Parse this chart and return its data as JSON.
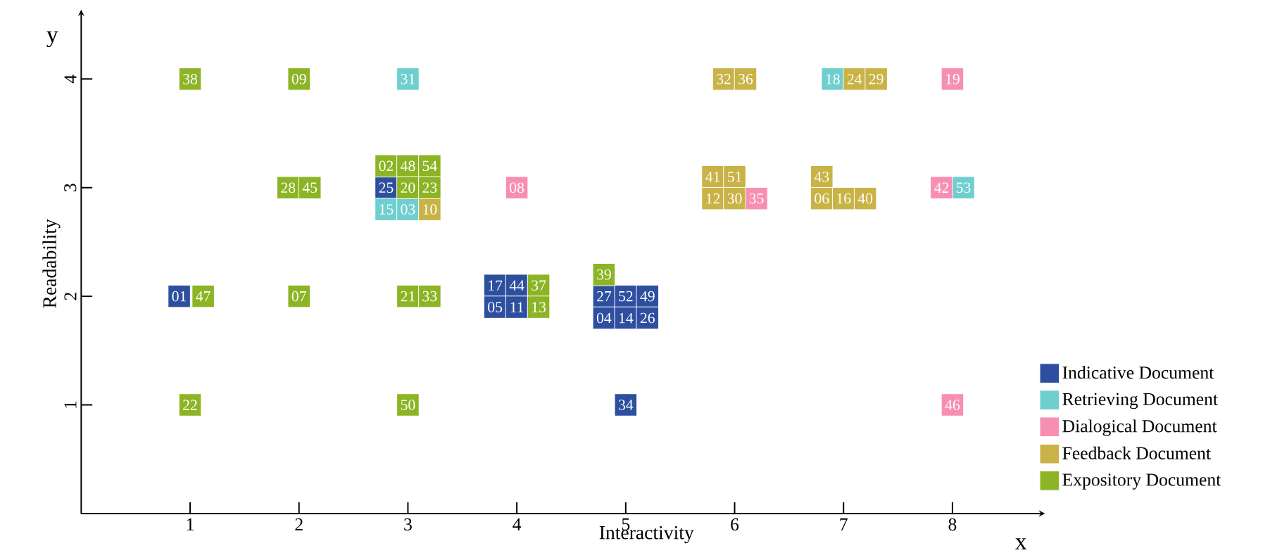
{
  "chart_data": {
    "type": "scatter",
    "xlabel": "Interactivity",
    "ylabel": "Readability",
    "annotations": [
      "x",
      "y",
      {
        "text": "01",
        "x": 0.9,
        "y": 2.0
      },
      {
        "text": "25",
        "x": 2.8,
        "y": 3.0
      },
      {
        "text": "17",
        "x": 3.8,
        "y": 2.1
      },
      {
        "text": "44",
        "x": 4.0,
        "y": 2.1
      },
      {
        "text": "05",
        "x": 3.8,
        "y": 1.9
      },
      {
        "text": "11",
        "x": 4.0,
        "y": 1.9
      },
      {
        "text": "27",
        "x": 4.8,
        "y": 2.0
      },
      {
        "text": "52",
        "x": 5.0,
        "y": 2.0
      },
      {
        "text": "49",
        "x": 5.2,
        "y": 2.0
      },
      {
        "text": "04",
        "x": 4.8,
        "y": 1.8
      },
      {
        "text": "14",
        "x": 5.0,
        "y": 1.8
      },
      {
        "text": "26",
        "x": 5.2,
        "y": 1.8
      },
      {
        "text": "34",
        "x": 5.0,
        "y": 1.0
      },
      {
        "text": "31",
        "x": 3.0,
        "y": 4.0
      },
      {
        "text": "15",
        "x": 2.8,
        "y": 2.8
      },
      {
        "text": "03",
        "x": 3.0,
        "y": 2.8
      },
      {
        "text": "18",
        "x": 6.9,
        "y": 4.0
      },
      {
        "text": "53",
        "x": 8.1,
        "y": 3.0
      },
      {
        "text": "08",
        "x": 4.0,
        "y": 3.0
      },
      {
        "text": "35",
        "x": 6.2,
        "y": 2.9
      },
      {
        "text": "19",
        "x": 8.0,
        "y": 4.0
      },
      {
        "text": "42",
        "x": 7.9,
        "y": 3.0
      },
      {
        "text": "46",
        "x": 8.0,
        "y": 1.0
      },
      {
        "text": "10",
        "x": 3.2,
        "y": 2.8
      },
      {
        "text": "32",
        "x": 5.9,
        "y": 4.0
      },
      {
        "text": "36",
        "x": 6.1,
        "y": 4.0
      },
      {
        "text": "41",
        "x": 5.8,
        "y": 3.1
      },
      {
        "text": "51",
        "x": 6.0,
        "y": 3.1
      },
      {
        "text": "12",
        "x": 5.8,
        "y": 2.9
      },
      {
        "text": "30",
        "x": 6.0,
        "y": 2.9
      },
      {
        "text": "43",
        "x": 6.8,
        "y": 3.1
      },
      {
        "text": "06",
        "x": 6.8,
        "y": 2.9
      },
      {
        "text": "16",
        "x": 7.0,
        "y": 2.9
      },
      {
        "text": "40",
        "x": 7.2,
        "y": 2.9
      },
      {
        "text": "24",
        "x": 7.1,
        "y": 4.0
      },
      {
        "text": "29",
        "x": 7.3,
        "y": 4.0
      },
      {
        "text": "38",
        "x": 1.0,
        "y": 4.0
      },
      {
        "text": "09",
        "x": 2.0,
        "y": 4.0
      },
      {
        "text": "28",
        "x": 1.9,
        "y": 3.0
      },
      {
        "text": "45",
        "x": 2.1,
        "y": 3.0
      },
      {
        "text": "02",
        "x": 2.8,
        "y": 3.2
      },
      {
        "text": "48",
        "x": 3.0,
        "y": 3.2
      },
      {
        "text": "54",
        "x": 3.2,
        "y": 3.2
      },
      {
        "text": "20",
        "x": 3.0,
        "y": 3.0
      },
      {
        "text": "23",
        "x": 3.2,
        "y": 3.0
      },
      {
        "text": "47",
        "x": 1.12,
        "y": 2.0
      },
      {
        "text": "07",
        "x": 2.0,
        "y": 2.0
      },
      {
        "text": "21",
        "x": 3.0,
        "y": 2.0
      },
      {
        "text": "33",
        "x": 3.2,
        "y": 2.0
      },
      {
        "text": "37",
        "x": 4.2,
        "y": 2.1
      },
      {
        "text": "13",
        "x": 4.2,
        "y": 1.9
      },
      {
        "text": "39",
        "x": 4.8,
        "y": 2.2
      },
      {
        "text": "22",
        "x": 1.0,
        "y": 1.0
      },
      {
        "text": "50",
        "x": 3.0,
        "y": 1.0
      }
    ],
    "xlim": [
      0,
      8.85
    ],
    "ylim": [
      0,
      4.6
    ],
    "xticks": [
      1,
      2,
      3,
      4,
      5,
      6,
      7,
      8
    ],
    "yticks": [
      1,
      2,
      3,
      4
    ],
    "legend": "right",
    "marker": "square",
    "series": [
      {
        "name": "Indicative Document",
        "color": "#2e4f9f",
        "x": [
          0.9,
          2.8,
          3.8,
          4.0,
          3.8,
          4.0,
          4.8,
          5.0,
          5.2,
          4.8,
          5.0,
          5.2,
          5.0
        ],
        "values": [
          2.0,
          3.0,
          2.1,
          2.1,
          1.9,
          1.9,
          2.0,
          2.0,
          2.0,
          1.8,
          1.8,
          1.8,
          1.0
        ]
      },
      {
        "name": "Retrieving Document",
        "color": "#6fcfcf",
        "x": [
          3.0,
          2.8,
          3.0,
          6.9,
          8.1
        ],
        "values": [
          4.0,
          2.8,
          2.8,
          4.0,
          3.0
        ]
      },
      {
        "name": "Dialogical Document",
        "color": "#f78fb3",
        "x": [
          4.0,
          6.2,
          8.0,
          7.9,
          8.0
        ],
        "values": [
          3.0,
          2.9,
          4.0,
          3.0,
          1.0
        ]
      },
      {
        "name": "Feedback Document",
        "color": "#c9b346",
        "x": [
          3.2,
          5.9,
          6.1,
          5.8,
          6.0,
          5.8,
          6.0,
          6.8,
          6.8,
          7.0,
          7.2,
          7.1,
          7.3
        ],
        "values": [
          2.8,
          4.0,
          4.0,
          3.1,
          3.1,
          2.9,
          2.9,
          3.1,
          2.9,
          2.9,
          2.9,
          4.0,
          4.0
        ]
      },
      {
        "name": "Expository Document",
        "color": "#8cb424",
        "x": [
          1.0,
          2.0,
          1.9,
          2.1,
          2.8,
          3.0,
          3.2,
          3.0,
          3.2,
          1.12,
          2.0,
          3.0,
          3.2,
          4.2,
          4.2,
          4.8,
          1.0,
          3.0
        ],
        "values": [
          4.0,
          4.0,
          3.0,
          3.0,
          3.2,
          3.2,
          3.2,
          3.0,
          3.0,
          2.0,
          2.0,
          2.0,
          2.0,
          2.1,
          1.9,
          2.2,
          1.0,
          1.0
        ]
      }
    ]
  }
}
